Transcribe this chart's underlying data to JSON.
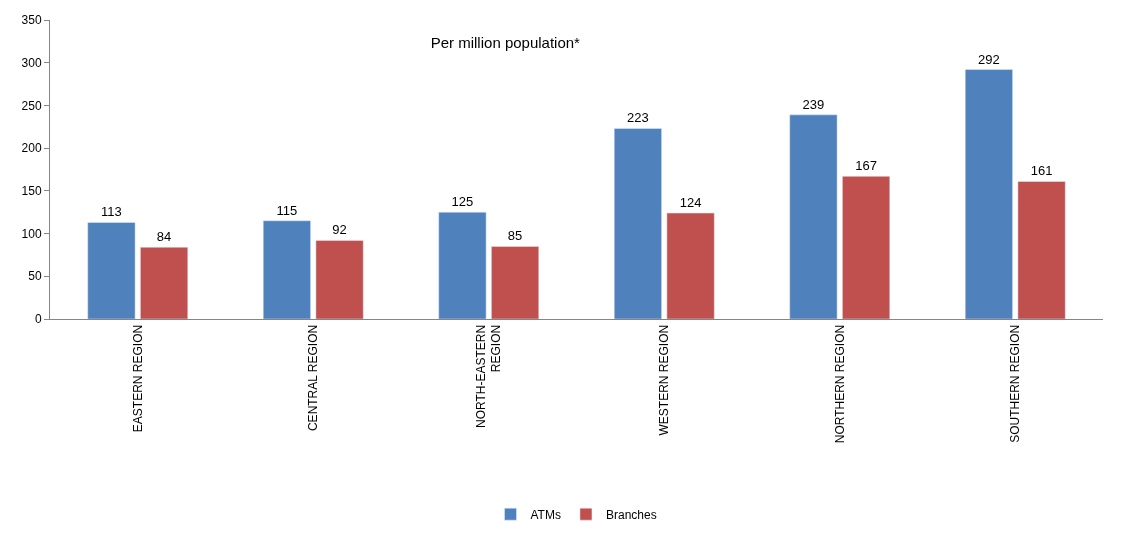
{
  "chart_data": {
    "type": "bar",
    "title": "Per million population*",
    "categories": [
      "EASTERN REGION",
      "CENTRAL REGION",
      "NORTH-EASTERN REGION",
      "WESTERN REGION",
      "NORTHERN REGION",
      "SOUTHERN REGION"
    ],
    "series": [
      {
        "name": "ATMs",
        "color": "#4f81bd",
        "values": [
          113,
          115,
          125,
          223,
          239,
          292
        ]
      },
      {
        "name": "Branches",
        "color": "#c0504d",
        "values": [
          84,
          92,
          85,
          124,
          167,
          161
        ]
      }
    ],
    "ylim": [
      0,
      350
    ],
    "yticks": [
      0,
      50,
      100,
      150,
      200,
      250,
      300,
      350
    ],
    "legend": "bottom",
    "data_labels": true
  }
}
